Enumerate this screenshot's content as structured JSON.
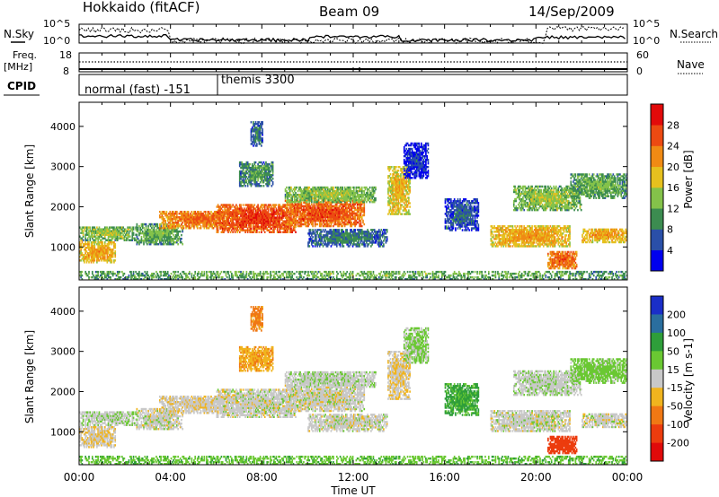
{
  "header": {
    "station": "Hokkaido (fitACF)",
    "beam": "Beam 09",
    "date": "14/Sep/2009"
  },
  "noise_panel": {
    "left_label": "N.Sky",
    "right_label": "N.Search",
    "tick_hi": "10^5",
    "tick_lo": "10^0"
  },
  "freq_panel": {
    "left_label_1": "Freq.",
    "left_label_2": "[MHz]",
    "left_ticks": [
      "18",
      "8"
    ],
    "right_label": "Nave",
    "right_ticks": [
      "60",
      "0"
    ]
  },
  "cpid_panel": {
    "label": "CPID",
    "segments": [
      {
        "start_hour": 0,
        "end_hour": 6.05,
        "name": "normal (fast) -151"
      },
      {
        "start_hour": 6.05,
        "end_hour": 24,
        "name": "themis 3300"
      }
    ]
  },
  "power_panel": {
    "ylabel": "Slant Range [km]",
    "yticks": [
      "1000",
      "2000",
      "3000",
      "4000"
    ],
    "colorbar_label": "Power [dB]",
    "colorbar_ticks": [
      "4",
      "8",
      "12",
      "16",
      "20",
      "24",
      "28"
    ],
    "colors": [
      "#0000ee",
      "#2a4fa8",
      "#3c8c50",
      "#84c24a",
      "#e6c01e",
      "#f08a14",
      "#ec4a12",
      "#e20a0a"
    ]
  },
  "velocity_panel": {
    "ylabel": "Slant Range [km]",
    "yticks": [
      "1000",
      "2000",
      "3000",
      "4000"
    ],
    "colorbar_label": "Velocity [m s-1]",
    "colorbar_ticks": [
      "200",
      "100",
      "50",
      "15",
      "-15",
      "-50",
      "-100",
      "-200"
    ],
    "colors": [
      "#1a2ec8",
      "#2a6e9e",
      "#2e9e3a",
      "#6ac832",
      "#c8c8c8",
      "#f0b41e",
      "#f07814",
      "#ec3c0e",
      "#e00a0a"
    ]
  },
  "xaxis": {
    "label": "Time UT",
    "ticks": [
      "00:00",
      "04:00",
      "08:00",
      "12:00",
      "16:00",
      "20:00",
      "00:00"
    ]
  },
  "chart_data": {
    "type": "heatmap",
    "title": "Hokkaido (fitACF)  Beam 09  14/Sep/2009",
    "xlabel": "Time UT",
    "ylabel": "Slant Range [km]",
    "xlim_hours": [
      0,
      24
    ],
    "ylim_km": [
      180,
      4600
    ],
    "power_db_range": [
      0,
      32
    ],
    "velocity_range": [
      -250,
      250
    ],
    "regions": [
      {
        "t0": 0.0,
        "t1": 1.6,
        "r0": 600,
        "r1": 1100,
        "power": 22,
        "velocity": -10
      },
      {
        "t0": 0.0,
        "t1": 2.5,
        "r0": 1150,
        "r1": 1500,
        "power": 16,
        "velocity": 5
      },
      {
        "t0": 2.5,
        "t1": 4.5,
        "r0": 1050,
        "r1": 1550,
        "power": 14,
        "velocity": 0
      },
      {
        "t0": 3.5,
        "t1": 7.0,
        "r0": 1450,
        "r1": 1900,
        "power": 25,
        "velocity": -5
      },
      {
        "t0": 6.0,
        "t1": 9.5,
        "r0": 1350,
        "r1": 2050,
        "power": 28,
        "velocity": 0
      },
      {
        "t0": 7.0,
        "t1": 8.5,
        "r0": 2500,
        "r1": 3100,
        "power": 12,
        "velocity": -40
      },
      {
        "t0": 7.5,
        "t1": 8.0,
        "r0": 3500,
        "r1": 4100,
        "power": 10,
        "velocity": -60
      },
      {
        "t0": 9.0,
        "t1": 12.5,
        "r0": 1500,
        "r1": 2150,
        "power": 27,
        "velocity": 0
      },
      {
        "t0": 9.0,
        "t1": 13.0,
        "r0": 2100,
        "r1": 2500,
        "power": 16,
        "velocity": 5
      },
      {
        "t0": 10.0,
        "t1": 13.5,
        "r0": 1000,
        "r1": 1450,
        "power": 10,
        "velocity": 0
      },
      {
        "t0": 13.5,
        "t1": 14.5,
        "r0": 1800,
        "r1": 3000,
        "power": 20,
        "velocity": -10
      },
      {
        "t0": 14.2,
        "t1": 15.3,
        "r0": 2700,
        "r1": 3600,
        "power": 6,
        "velocity": 20
      },
      {
        "t0": 16.0,
        "t1": 17.5,
        "r0": 1400,
        "r1": 2200,
        "power": 8,
        "velocity": 60
      },
      {
        "t0": 18.0,
        "t1": 21.5,
        "r0": 1000,
        "r1": 1500,
        "power": 22,
        "velocity": 0
      },
      {
        "t0": 19.0,
        "t1": 22.0,
        "r0": 1900,
        "r1": 2500,
        "power": 16,
        "velocity": 5
      },
      {
        "t0": 20.5,
        "t1": 21.8,
        "r0": 450,
        "r1": 900,
        "power": 26,
        "velocity": -120
      },
      {
        "t0": 22.0,
        "t1": 24.0,
        "r0": 1100,
        "r1": 1450,
        "power": 22,
        "velocity": 0
      },
      {
        "t0": 21.5,
        "t1": 24.0,
        "r0": 2200,
        "r1": 2800,
        "power": 14,
        "velocity": 30
      },
      {
        "t0": 0.0,
        "t1": 24.0,
        "r0": 180,
        "r1": 400,
        "power": 14,
        "velocity": 40
      }
    ]
  }
}
